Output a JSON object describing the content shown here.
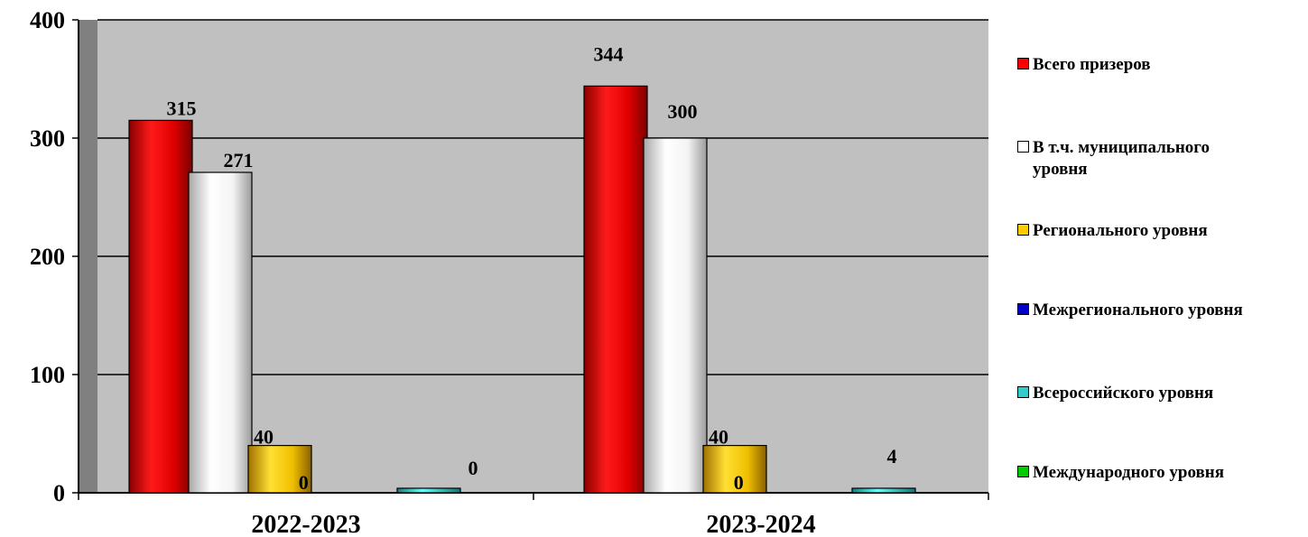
{
  "chart_data": {
    "type": "bar",
    "categories": [
      "2022-2023",
      "2023-2024"
    ],
    "ylim": [
      0,
      400
    ],
    "yticks": [
      0,
      100,
      200,
      300,
      400
    ],
    "grid": true,
    "legend_position": "right",
    "series": [
      {
        "name": "Всего призеров",
        "values": [
          315,
          344
        ],
        "color": "#ff0000"
      },
      {
        "name": "В т.ч. муниципального уровня",
        "values": [
          271,
          300
        ],
        "color": "#ffffff"
      },
      {
        "name": "Регионального уровня",
        "values": [
          40,
          40
        ],
        "color": "#ffcc00"
      },
      {
        "name": "Межрегионального уровня",
        "values": [
          0,
          0
        ],
        "color": "#0000cc"
      },
      {
        "name": "Всероссийского уровня",
        "values": [
          0,
          4
        ],
        "color": "#33cccc"
      },
      {
        "name": "Международного уровня",
        "values": [
          null,
          null
        ],
        "color": "#00cc00"
      }
    ],
    "data_labels": [
      [
        "315",
        "344"
      ],
      [
        "271",
        "300"
      ],
      [
        "40",
        "40"
      ],
      [
        "0",
        "0"
      ],
      [
        "0",
        "4"
      ],
      [
        "",
        ""
      ]
    ]
  }
}
